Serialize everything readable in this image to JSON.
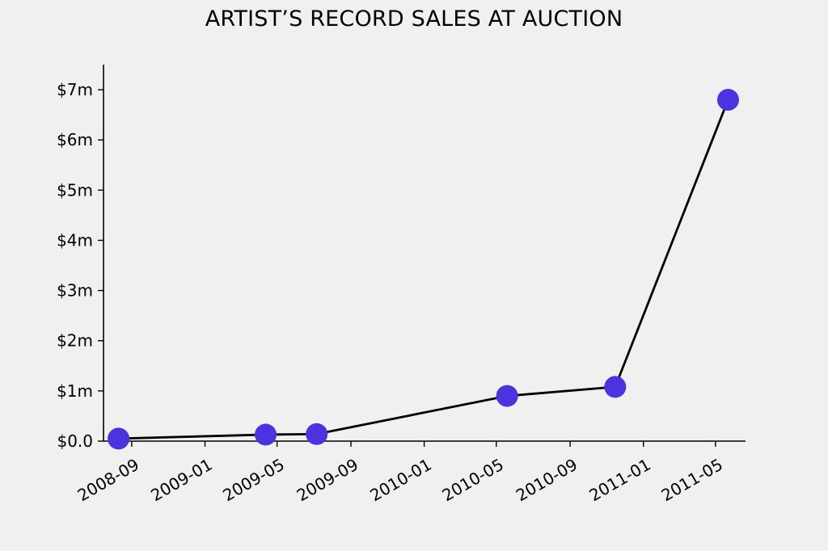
{
  "chart_data": {
    "type": "line",
    "title": "ARTIST’S RECORD SALES AT AUCTION",
    "xlabel": "",
    "ylabel": "",
    "x_axis": "date",
    "xlim": [
      "2008-07-16",
      "2011-06-20"
    ],
    "ylim": [
      0,
      7.5
    ],
    "x_ticks": [
      {
        "value": "2008-09-01",
        "label": "2008-09"
      },
      {
        "value": "2009-01-01",
        "label": "2009-01"
      },
      {
        "value": "2009-05-01",
        "label": "2009-05"
      },
      {
        "value": "2009-09-01",
        "label": "2009-09"
      },
      {
        "value": "2010-01-01",
        "label": "2010-01"
      },
      {
        "value": "2010-05-01",
        "label": "2010-05"
      },
      {
        "value": "2010-09-01",
        "label": "2010-09"
      },
      {
        "value": "2011-01-01",
        "label": "2011-01"
      },
      {
        "value": "2011-05-01",
        "label": "2011-05"
      }
    ],
    "y_ticks": [
      {
        "value": 0,
        "label": "$0.0"
      },
      {
        "value": 1,
        "label": "$1m"
      },
      {
        "value": 2,
        "label": "$2m"
      },
      {
        "value": 3,
        "label": "$3m"
      },
      {
        "value": 4,
        "label": "$4m"
      },
      {
        "value": 5,
        "label": "$5m"
      },
      {
        "value": 6,
        "label": "$6m"
      },
      {
        "value": 7,
        "label": "$7m"
      }
    ],
    "series": [
      {
        "x": [
          "2008-08-10",
          "2009-04-12",
          "2009-07-06",
          "2010-05-19",
          "2010-11-15",
          "2011-05-22"
        ],
        "y": [
          0.05,
          0.13,
          0.14,
          0.9,
          1.08,
          6.8
        ]
      }
    ],
    "line_color": "#000000",
    "marker_color": "#4b33e0",
    "background": "#f0f0f0",
    "grid": false,
    "legend": "none"
  }
}
